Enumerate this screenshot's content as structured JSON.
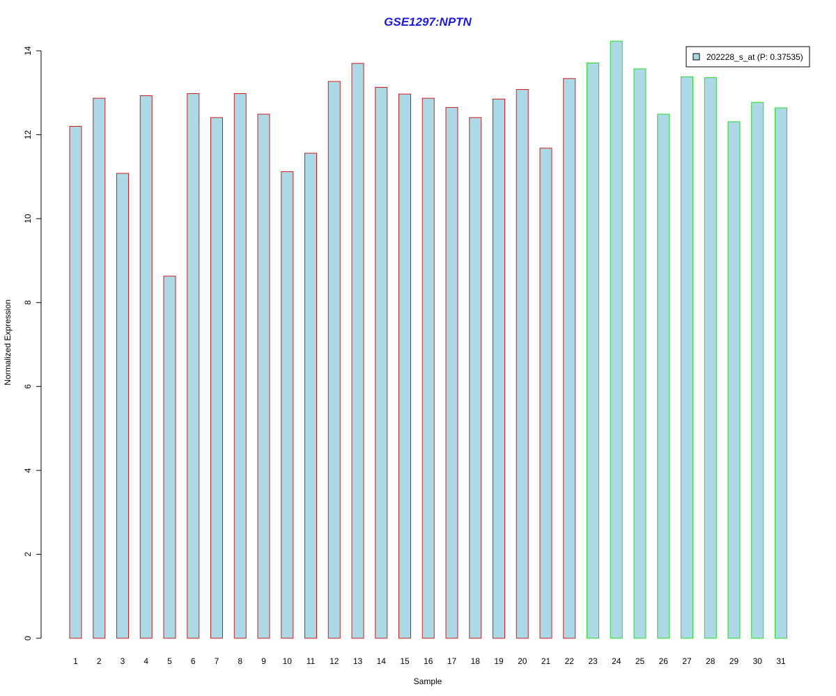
{
  "chart_data": {
    "type": "bar",
    "title": "GSE1297:NPTN",
    "xlabel": "Sample",
    "ylabel": "Normalized Expression",
    "categories": [
      "1",
      "2",
      "3",
      "4",
      "5",
      "6",
      "7",
      "8",
      "9",
      "10",
      "11",
      "12",
      "13",
      "14",
      "15",
      "16",
      "17",
      "18",
      "19",
      "20",
      "21",
      "22",
      "23",
      "24",
      "25",
      "26",
      "27",
      "28",
      "29",
      "30",
      "31"
    ],
    "series": [
      {
        "name": "202228_s_at (P: 0.37535)",
        "values": [
          12.2,
          12.87,
          11.08,
          12.93,
          8.63,
          12.98,
          12.41,
          12.98,
          12.49,
          11.12,
          11.56,
          13.27,
          13.7,
          13.13,
          12.97,
          12.87,
          12.65,
          12.41,
          12.85,
          13.08,
          11.68,
          13.34,
          13.71,
          14.23,
          13.57,
          12.49,
          13.38,
          13.36,
          12.31,
          12.77,
          12.64
        ]
      }
    ],
    "group_borders": [
      "#d11b1b",
      "#d11b1b",
      "#d11b1b",
      "#d11b1b",
      "#d11b1b",
      "#d11b1b",
      "#d11b1b",
      "#d11b1b",
      "#d11b1b",
      "#d11b1b",
      "#d11b1b",
      "#d11b1b",
      "#d11b1b",
      "#d11b1b",
      "#d11b1b",
      "#d11b1b",
      "#d11b1b",
      "#d11b1b",
      "#d11b1b",
      "#d11b1b",
      "#d11b1b",
      "#d11b1b",
      "#22dd22",
      "#22dd22",
      "#22dd22",
      "#22dd22",
      "#22dd22",
      "#22dd22",
      "#22dd22",
      "#22dd22",
      "#22dd22"
    ],
    "bar_fill": "#add8e6",
    "title_color": "#1a1adf",
    "ylim": [
      0,
      14
    ],
    "yticks": [
      0,
      2,
      4,
      6,
      8,
      10,
      12,
      14
    ],
    "grid": false,
    "legend_position": "top-right"
  }
}
